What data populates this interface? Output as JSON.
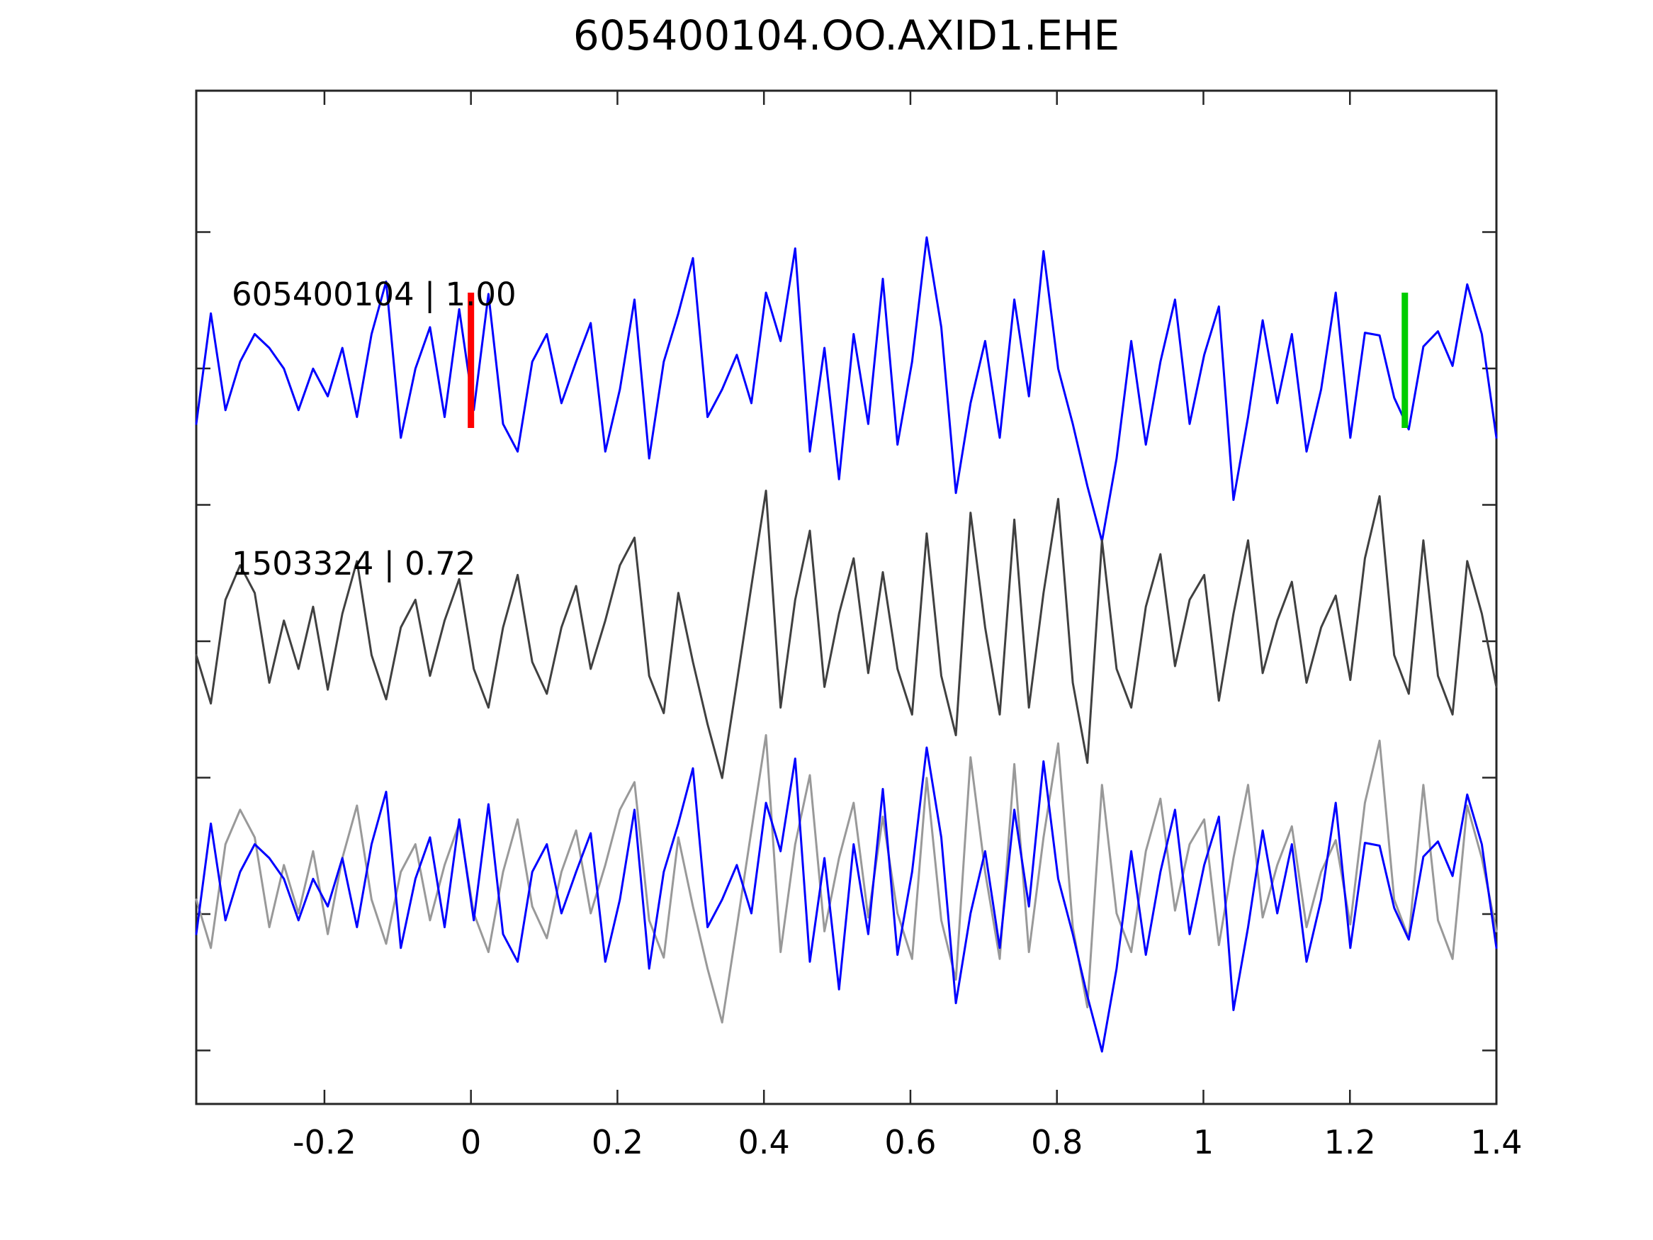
{
  "title": "605400104.OO.AXID1.EHE",
  "colors": {
    "template_trace": "#0000ff",
    "detection_trace": "#404040",
    "overlay_detection_trace": "#999999",
    "overlay_template_trace": "#0000ff",
    "red_marker": "#ff0000",
    "green_marker": "#00cc00",
    "frame": "#262626",
    "text": "#000000",
    "background": "#ffffff"
  },
  "axis": {
    "xlim": [
      -0.375,
      1.4
    ],
    "x_ticks": [
      -0.2,
      0,
      0.2,
      0.4,
      0.6,
      0.8,
      1,
      1.2,
      1.4
    ],
    "x_tick_labels": [
      "-0.2",
      "0",
      "0.2",
      "0.4",
      "0.6",
      "0.8",
      "1",
      "1.2",
      "1.4"
    ],
    "y_ticks": [
      1.5,
      1.0,
      0.5,
      0,
      -0.5,
      -1.0,
      -1.5
    ],
    "grid": false,
    "legend": "none"
  },
  "markers": [
    {
      "name": "red-pick-marker",
      "x": 0.0,
      "color": "#ff0000"
    },
    {
      "name": "green-pick-marker",
      "x": 1.275,
      "color": "#00cc00"
    }
  ],
  "chart_data": {
    "type": "line",
    "title": "605400104.OO.AXID1.EHE",
    "xlabel": "",
    "ylabel": "",
    "xlim": [
      -0.375,
      1.4
    ],
    "rows": 3,
    "series": [
      {
        "name": "605400104",
        "label": "605400104 | 1.00",
        "id": "605400104",
        "correlation": "1.00",
        "color": "#0000ff",
        "row": 0,
        "values": [
          -0.35,
          0.45,
          -0.25,
          0.1,
          0.3,
          0.2,
          0.05,
          -0.25,
          0.05,
          -0.15,
          0.2,
          -0.3,
          0.3,
          0.68,
          -0.45,
          0.05,
          0.35,
          -0.3,
          0.48,
          -0.25,
          0.59,
          -0.35,
          -0.55,
          0.1,
          0.3,
          -0.2,
          0.1,
          0.38,
          -0.55,
          -0.1,
          0.55,
          -0.6,
          0.1,
          0.45,
          0.85,
          -0.3,
          -0.1,
          0.15,
          -0.2,
          0.6,
          0.25,
          0.92,
          -0.55,
          0.2,
          -0.75,
          0.3,
          -0.35,
          0.7,
          -0.5,
          0.1,
          1.0,
          0.35,
          -0.85,
          -0.2,
          0.25,
          -0.45,
          0.55,
          -0.15,
          0.9,
          0.05,
          -0.35,
          -0.8,
          -1.2,
          -0.6,
          0.25,
          -0.5,
          0.1,
          0.55,
          -0.35,
          0.15,
          0.5,
          -0.9,
          -0.3,
          0.4,
          -0.2,
          0.3,
          -0.55,
          -0.1,
          0.6,
          -0.45,
          0.31,
          0.29,
          -0.16,
          -0.39,
          0.21,
          0.32,
          0.07,
          0.66,
          0.3,
          -0.45
        ]
      },
      {
        "name": "1503324",
        "label": "1503324 | 0.72",
        "id": "1503324",
        "correlation": "0.72",
        "color": "#404040",
        "row": 1,
        "values": [
          -0.1,
          -0.45,
          0.3,
          0.55,
          0.35,
          -0.3,
          0.15,
          -0.2,
          0.25,
          -0.35,
          0.2,
          0.58,
          -0.1,
          -0.42,
          0.1,
          0.3,
          -0.25,
          0.15,
          0.45,
          -0.2,
          -0.48,
          0.1,
          0.48,
          -0.15,
          -0.38,
          0.1,
          0.4,
          -0.2,
          0.15,
          0.55,
          0.75,
          -0.25,
          -0.52,
          0.35,
          -0.15,
          -0.6,
          -0.99,
          -0.3,
          0.4,
          1.09,
          -0.48,
          0.3,
          0.8,
          -0.33,
          0.2,
          0.6,
          -0.23,
          0.5,
          -0.2,
          -0.53,
          0.78,
          -0.25,
          -0.68,
          0.93,
          0.1,
          -0.53,
          0.88,
          -0.48,
          0.35,
          1.03,
          -0.3,
          -0.88,
          0.73,
          -0.2,
          -0.48,
          0.25,
          0.63,
          -0.18,
          0.3,
          0.48,
          -0.43,
          0.2,
          0.73,
          -0.23,
          0.15,
          0.43,
          -0.3,
          0.1,
          0.33,
          -0.28,
          0.6,
          1.05,
          -0.1,
          -0.38,
          0.73,
          -0.25,
          -0.53,
          0.58,
          0.2,
          -0.33
        ]
      },
      {
        "name": "overlay-1503324",
        "color": "#999999",
        "row": 2,
        "source": "1503324"
      },
      {
        "name": "overlay-605400104",
        "color": "#0000ff",
        "row": 2,
        "source": "605400104"
      }
    ]
  }
}
